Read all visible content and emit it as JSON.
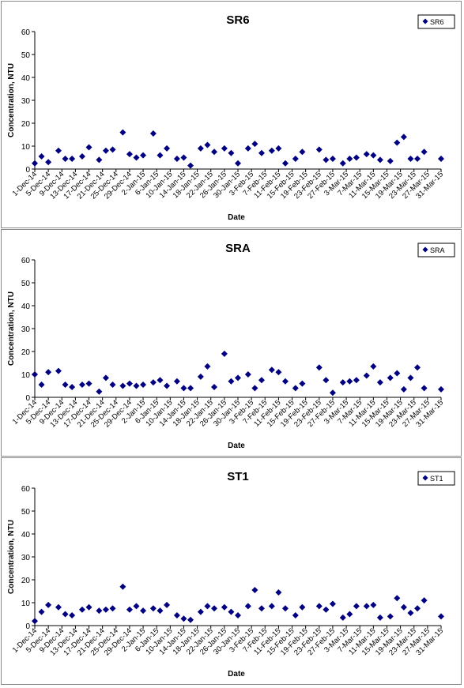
{
  "chart_data": [
    {
      "type": "scatter",
      "title": "SR6",
      "xlabel": "Date",
      "ylabel": "Concentration, NTU",
      "ylim": [
        0,
        60
      ],
      "yticks": [
        0,
        10,
        20,
        30,
        40,
        50,
        60
      ],
      "xlim": [
        "1-Dec-14",
        "31-Mar-15"
      ],
      "xticks": [
        "1-Dec-14",
        "5-Dec-14",
        "9-Dec-14",
        "13-Dec-14",
        "17-Dec-14",
        "21-Dec-14",
        "25-Dec-14",
        "29-Dec-14",
        "2-Jan-15",
        "6-Jan-15",
        "10-Jan-15",
        "14-Jan-15",
        "18-Jan-15",
        "22-Jan-15",
        "26-Jan-15",
        "30-Jan-15",
        "3-Feb-15",
        "7-Feb-15",
        "11-Feb-15",
        "15-Feb-15",
        "19-Feb-15",
        "23-Feb-15",
        "27-Feb-15",
        "3-Mar-15",
        "7-Mar-15",
        "11-Mar-15",
        "15-Mar-15",
        "19-Mar-15",
        "23-Mar-15",
        "27-Mar-15",
        "31-Mar-15"
      ],
      "legend_position": "top-right",
      "color": "#000080",
      "series": [
        {
          "name": "SR6",
          "points": [
            {
              "x": "1-Dec-14",
              "y": 2.5
            },
            {
              "x": "3-Dec-14",
              "y": 5.5
            },
            {
              "x": "5-Dec-14",
              "y": 3
            },
            {
              "x": "8-Dec-14",
              "y": 8
            },
            {
              "x": "10-Dec-14",
              "y": 4.5
            },
            {
              "x": "12-Dec-14",
              "y": 4.5
            },
            {
              "x": "15-Dec-14",
              "y": 5.5
            },
            {
              "x": "17-Dec-14",
              "y": 9.5
            },
            {
              "x": "20-Dec-14",
              "y": 4
            },
            {
              "x": "22-Dec-14",
              "y": 8
            },
            {
              "x": "24-Dec-14",
              "y": 8.5
            },
            {
              "x": "27-Dec-14",
              "y": 16
            },
            {
              "x": "29-Dec-14",
              "y": 6.5
            },
            {
              "x": "31-Dec-14",
              "y": 5
            },
            {
              "x": "2-Jan-15",
              "y": 6
            },
            {
              "x": "5-Jan-15",
              "y": 15.5
            },
            {
              "x": "7-Jan-15",
              "y": 6
            },
            {
              "x": "9-Jan-15",
              "y": 9
            },
            {
              "x": "12-Jan-15",
              "y": 4.5
            },
            {
              "x": "14-Jan-15",
              "y": 5
            },
            {
              "x": "16-Jan-15",
              "y": 1.5
            },
            {
              "x": "19-Jan-15",
              "y": 9
            },
            {
              "x": "21-Jan-15",
              "y": 10.5
            },
            {
              "x": "23-Jan-15",
              "y": 7.5
            },
            {
              "x": "26-Jan-15",
              "y": 9
            },
            {
              "x": "28-Jan-15",
              "y": 7
            },
            {
              "x": "30-Jan-15",
              "y": 2.5
            },
            {
              "x": "2-Feb-15",
              "y": 9
            },
            {
              "x": "4-Feb-15",
              "y": 11
            },
            {
              "x": "6-Feb-15",
              "y": 7
            },
            {
              "x": "9-Feb-15",
              "y": 8
            },
            {
              "x": "11-Feb-15",
              "y": 9
            },
            {
              "x": "13-Feb-15",
              "y": 2.5
            },
            {
              "x": "16-Feb-15",
              "y": 4.5
            },
            {
              "x": "18-Feb-15",
              "y": 7.5
            },
            {
              "x": "23-Feb-15",
              "y": 8.5
            },
            {
              "x": "25-Feb-15",
              "y": 4
            },
            {
              "x": "27-Feb-15",
              "y": 4.5
            },
            {
              "x": "2-Mar-15",
              "y": 2.5
            },
            {
              "x": "4-Mar-15",
              "y": 4.5
            },
            {
              "x": "6-Mar-15",
              "y": 5
            },
            {
              "x": "9-Mar-15",
              "y": 6.5
            },
            {
              "x": "11-Mar-15",
              "y": 6
            },
            {
              "x": "13-Mar-15",
              "y": 4
            },
            {
              "x": "16-Mar-15",
              "y": 3.5
            },
            {
              "x": "18-Mar-15",
              "y": 11.5
            },
            {
              "x": "20-Mar-15",
              "y": 14
            },
            {
              "x": "22-Mar-15",
              "y": 4.5
            },
            {
              "x": "24-Mar-15",
              "y": 4.5
            },
            {
              "x": "26-Mar-15",
              "y": 7.5
            },
            {
              "x": "31-Mar-15",
              "y": 4.5
            }
          ]
        }
      ]
    },
    {
      "type": "scatter",
      "title": "SRA",
      "xlabel": "Date",
      "ylabel": "Concentration, NTU",
      "ylim": [
        0,
        60
      ],
      "yticks": [
        0,
        10,
        20,
        30,
        40,
        50,
        60
      ],
      "xlim": [
        "1-Dec-14",
        "31-Mar-15"
      ],
      "xticks": [
        "1-Dec-14",
        "5-Dec-14",
        "9-Dec-14",
        "13-Dec-14",
        "17-Dec-14",
        "21-Dec-14",
        "25-Dec-14",
        "29-Dec-14",
        "2-Jan-15",
        "6-Jan-15",
        "10-Jan-15",
        "14-Jan-15",
        "18-Jan-15",
        "22-Jan-15",
        "26-Jan-15",
        "30-Jan-15",
        "3-Feb-15",
        "7-Feb-15",
        "11-Feb-15",
        "15-Feb-15",
        "19-Feb-15",
        "23-Feb-15",
        "27-Feb-15",
        "3-Mar-15",
        "7-Mar-15",
        "11-Mar-15",
        "15-Mar-15",
        "19-Mar-15",
        "23-Mar-15",
        "27-Mar-15",
        "31-Mar-15"
      ],
      "legend_position": "top-right",
      "color": "#000080",
      "series": [
        {
          "name": "SRA",
          "points": [
            {
              "x": "1-Dec-14",
              "y": 10
            },
            {
              "x": "3-Dec-14",
              "y": 5.5
            },
            {
              "x": "5-Dec-14",
              "y": 11
            },
            {
              "x": "8-Dec-14",
              "y": 11.5
            },
            {
              "x": "10-Dec-14",
              "y": 5.5
            },
            {
              "x": "12-Dec-14",
              "y": 4.5
            },
            {
              "x": "15-Dec-14",
              "y": 5.5
            },
            {
              "x": "17-Dec-14",
              "y": 6
            },
            {
              "x": "20-Dec-14",
              "y": 2.5
            },
            {
              "x": "22-Dec-14",
              "y": 8.5
            },
            {
              "x": "24-Dec-14",
              "y": 5.5
            },
            {
              "x": "27-Dec-14",
              "y": 5
            },
            {
              "x": "29-Dec-14",
              "y": 6
            },
            {
              "x": "31-Dec-14",
              "y": 5
            },
            {
              "x": "2-Jan-15",
              "y": 5.5
            },
            {
              "x": "5-Jan-15",
              "y": 6.5
            },
            {
              "x": "7-Jan-15",
              "y": 7.5
            },
            {
              "x": "9-Jan-15",
              "y": 5
            },
            {
              "x": "12-Jan-15",
              "y": 7
            },
            {
              "x": "14-Jan-15",
              "y": 4
            },
            {
              "x": "16-Jan-15",
              "y": 4
            },
            {
              "x": "19-Jan-15",
              "y": 9
            },
            {
              "x": "21-Jan-15",
              "y": 13.5
            },
            {
              "x": "23-Jan-15",
              "y": 4.5
            },
            {
              "x": "26-Jan-15",
              "y": 19
            },
            {
              "x": "28-Jan-15",
              "y": 7
            },
            {
              "x": "30-Jan-15",
              "y": 8.5
            },
            {
              "x": "2-Feb-15",
              "y": 10
            },
            {
              "x": "4-Feb-15",
              "y": 4
            },
            {
              "x": "6-Feb-15",
              "y": 7.5
            },
            {
              "x": "9-Feb-15",
              "y": 12
            },
            {
              "x": "11-Feb-15",
              "y": 11
            },
            {
              "x": "13-Feb-15",
              "y": 7
            },
            {
              "x": "16-Feb-15",
              "y": 4
            },
            {
              "x": "18-Feb-15",
              "y": 6
            },
            {
              "x": "23-Feb-15",
              "y": 13
            },
            {
              "x": "25-Feb-15",
              "y": 7.5
            },
            {
              "x": "27-Feb-15",
              "y": 2
            },
            {
              "x": "2-Mar-15",
              "y": 6.5
            },
            {
              "x": "4-Mar-15",
              "y": 7
            },
            {
              "x": "6-Mar-15",
              "y": 7.5
            },
            {
              "x": "9-Mar-15",
              "y": 9.5
            },
            {
              "x": "11-Mar-15",
              "y": 13.5
            },
            {
              "x": "13-Mar-15",
              "y": 6.5
            },
            {
              "x": "16-Mar-15",
              "y": 8.5
            },
            {
              "x": "18-Mar-15",
              "y": 10.5
            },
            {
              "x": "20-Mar-15",
              "y": 3.5
            },
            {
              "x": "22-Mar-15",
              "y": 8.5
            },
            {
              "x": "24-Mar-15",
              "y": 13
            },
            {
              "x": "26-Mar-15",
              "y": 4
            },
            {
              "x": "31-Mar-15",
              "y": 3.5
            }
          ]
        }
      ]
    },
    {
      "type": "scatter",
      "title": "ST1",
      "xlabel": "Date",
      "ylabel": "Concentration, NTU",
      "ylim": [
        0,
        60
      ],
      "yticks": [
        0,
        10,
        20,
        30,
        40,
        50,
        60
      ],
      "xlim": [
        "1-Dec-14",
        "31-Mar-15"
      ],
      "xticks": [
        "1-Dec-14",
        "5-Dec-14",
        "9-Dec-14",
        "13-Dec-14",
        "17-Dec-14",
        "21-Dec-14",
        "25-Dec-14",
        "29-Dec-14",
        "2-Jan-15",
        "6-Jan-15",
        "10-Jan-15",
        "14-Jan-15",
        "18-Jan-15",
        "22-Jan-15",
        "26-Jan-15",
        "30-Jan-15",
        "3-Feb-15",
        "7-Feb-15",
        "11-Feb-15",
        "15-Feb-15",
        "19-Feb-15",
        "23-Feb-15",
        "27-Feb-15",
        "3-Mar-15",
        "7-Mar-15",
        "11-Mar-15",
        "15-Mar-15",
        "19-Mar-15",
        "23-Mar-15",
        "27-Mar-15",
        "31-Mar-15"
      ],
      "legend_position": "top-right",
      "color": "#000080",
      "series": [
        {
          "name": "ST1",
          "points": [
            {
              "x": "1-Dec-14",
              "y": 2
            },
            {
              "x": "3-Dec-14",
              "y": 6
            },
            {
              "x": "5-Dec-14",
              "y": 9
            },
            {
              "x": "8-Dec-14",
              "y": 8
            },
            {
              "x": "10-Dec-14",
              "y": 5
            },
            {
              "x": "12-Dec-14",
              "y": 4.5
            },
            {
              "x": "15-Dec-14",
              "y": 7
            },
            {
              "x": "17-Dec-14",
              "y": 8
            },
            {
              "x": "20-Dec-14",
              "y": 6.5
            },
            {
              "x": "22-Dec-14",
              "y": 7
            },
            {
              "x": "24-Dec-14",
              "y": 7.5
            },
            {
              "x": "27-Dec-14",
              "y": 17
            },
            {
              "x": "29-Dec-14",
              "y": 7
            },
            {
              "x": "31-Dec-14",
              "y": 8.5
            },
            {
              "x": "2-Jan-15",
              "y": 6.5
            },
            {
              "x": "5-Jan-15",
              "y": 7.5
            },
            {
              "x": "7-Jan-15",
              "y": 6.5
            },
            {
              "x": "9-Jan-15",
              "y": 9
            },
            {
              "x": "12-Jan-15",
              "y": 4.5
            },
            {
              "x": "14-Jan-15",
              "y": 3
            },
            {
              "x": "16-Jan-15",
              "y": 2.5
            },
            {
              "x": "19-Jan-15",
              "y": 6
            },
            {
              "x": "21-Jan-15",
              "y": 8.5
            },
            {
              "x": "23-Jan-15",
              "y": 7.5
            },
            {
              "x": "26-Jan-15",
              "y": 8
            },
            {
              "x": "28-Jan-15",
              "y": 6
            },
            {
              "x": "30-Jan-15",
              "y": 4.5
            },
            {
              "x": "2-Feb-15",
              "y": 8.5
            },
            {
              "x": "4-Feb-15",
              "y": 15.5
            },
            {
              "x": "6-Feb-15",
              "y": 7.5
            },
            {
              "x": "9-Feb-15",
              "y": 8.5
            },
            {
              "x": "11-Feb-15",
              "y": 14.5
            },
            {
              "x": "13-Feb-15",
              "y": 7.5
            },
            {
              "x": "16-Feb-15",
              "y": 4.5
            },
            {
              "x": "18-Feb-15",
              "y": 8
            },
            {
              "x": "23-Feb-15",
              "y": 8.5
            },
            {
              "x": "25-Feb-15",
              "y": 7
            },
            {
              "x": "27-Feb-15",
              "y": 9.5
            },
            {
              "x": "2-Mar-15",
              "y": 3.5
            },
            {
              "x": "4-Mar-15",
              "y": 5
            },
            {
              "x": "6-Mar-15",
              "y": 8.5
            },
            {
              "x": "9-Mar-15",
              "y": 8.5
            },
            {
              "x": "11-Mar-15",
              "y": 9
            },
            {
              "x": "13-Mar-15",
              "y": 3.5
            },
            {
              "x": "16-Mar-15",
              "y": 4
            },
            {
              "x": "18-Mar-15",
              "y": 12
            },
            {
              "x": "20-Mar-15",
              "y": 8
            },
            {
              "x": "22-Mar-15",
              "y": 5.5
            },
            {
              "x": "24-Mar-15",
              "y": 7.5
            },
            {
              "x": "26-Mar-15",
              "y": 11
            },
            {
              "x": "31-Mar-15",
              "y": 4
            }
          ]
        }
      ]
    }
  ]
}
